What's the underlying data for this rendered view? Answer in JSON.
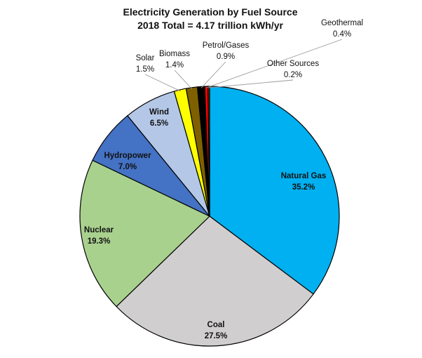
{
  "chart_data": {
    "type": "pie",
    "title": "Electricity Generation by Fuel Source",
    "subtitle": "2018 Total = 4.17 trillion kWh/yr",
    "start_angle_deg": 0,
    "direction": "clockwise",
    "slices": [
      {
        "name": "Natural Gas",
        "value": 35.2,
        "label": "35.2%",
        "color": "#00b0f0"
      },
      {
        "name": "Coal",
        "value": 27.5,
        "label": "27.5%",
        "color": "#d0cece"
      },
      {
        "name": "Nuclear",
        "value": 19.3,
        "label": "19.3%",
        "color": "#a9d18e"
      },
      {
        "name": "Hydropower",
        "value": 7.0,
        "label": "7.0%",
        "color": "#4472c4"
      },
      {
        "name": "Wind",
        "value": 6.5,
        "label": "6.5%",
        "color": "#b4c7e7"
      },
      {
        "name": "Solar",
        "value": 1.5,
        "label": "1.5%",
        "color": "#ffff00"
      },
      {
        "name": "Biomass",
        "value": 1.4,
        "label": "1.4%",
        "color": "#7f6000"
      },
      {
        "name": "Petrol/Gases",
        "value": 0.9,
        "label": "0.9%",
        "color": "#000000"
      },
      {
        "name": "Geothermal",
        "value": 0.4,
        "label": "0.4%",
        "color": "#ff0000"
      },
      {
        "name": "Other Sources",
        "value": 0.2,
        "label": "0.2%",
        "color": "#833c0c"
      }
    ]
  }
}
